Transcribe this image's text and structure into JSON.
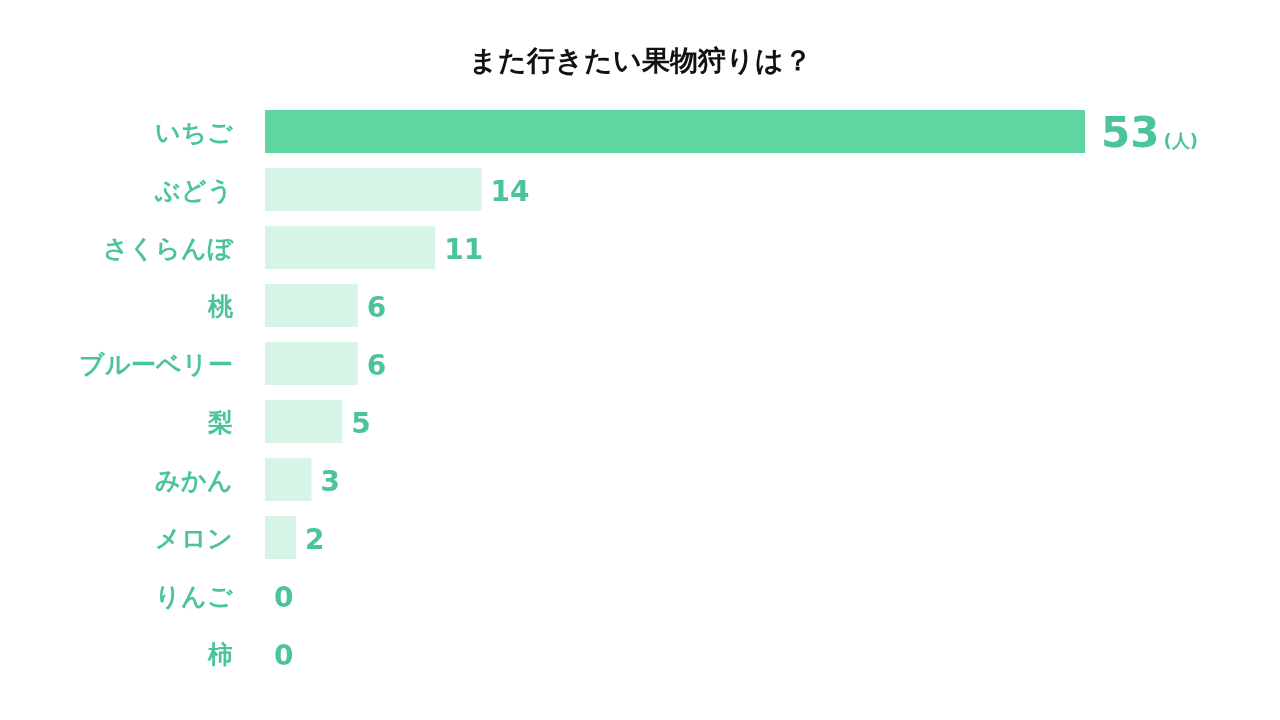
{
  "chart_data": {
    "type": "bar",
    "orientation": "horizontal",
    "title": "また行きたい果物狩りは？",
    "categories": [
      "いちご",
      "ぶどう",
      "さくらんぼ",
      "桃",
      "ブルーベリー",
      "梨",
      "みかん",
      "メロン",
      "りんご",
      "柿"
    ],
    "values": [
      53,
      14,
      11,
      6,
      6,
      5,
      3,
      2,
      0,
      0
    ],
    "colors": [
      "#5fd6a2",
      "#d6f5e7",
      "#d6f5e7",
      "#d6f5e7",
      "#d6f5e7",
      "#d6f5e7",
      "#d6f5e7",
      "#d6f5e7",
      "#d6f5e7",
      "#d6f5e7"
    ],
    "value_labels": [
      "53(人)",
      "14",
      "11",
      "6",
      "6",
      "5",
      "3",
      "2",
      "0",
      "0"
    ]
  }
}
